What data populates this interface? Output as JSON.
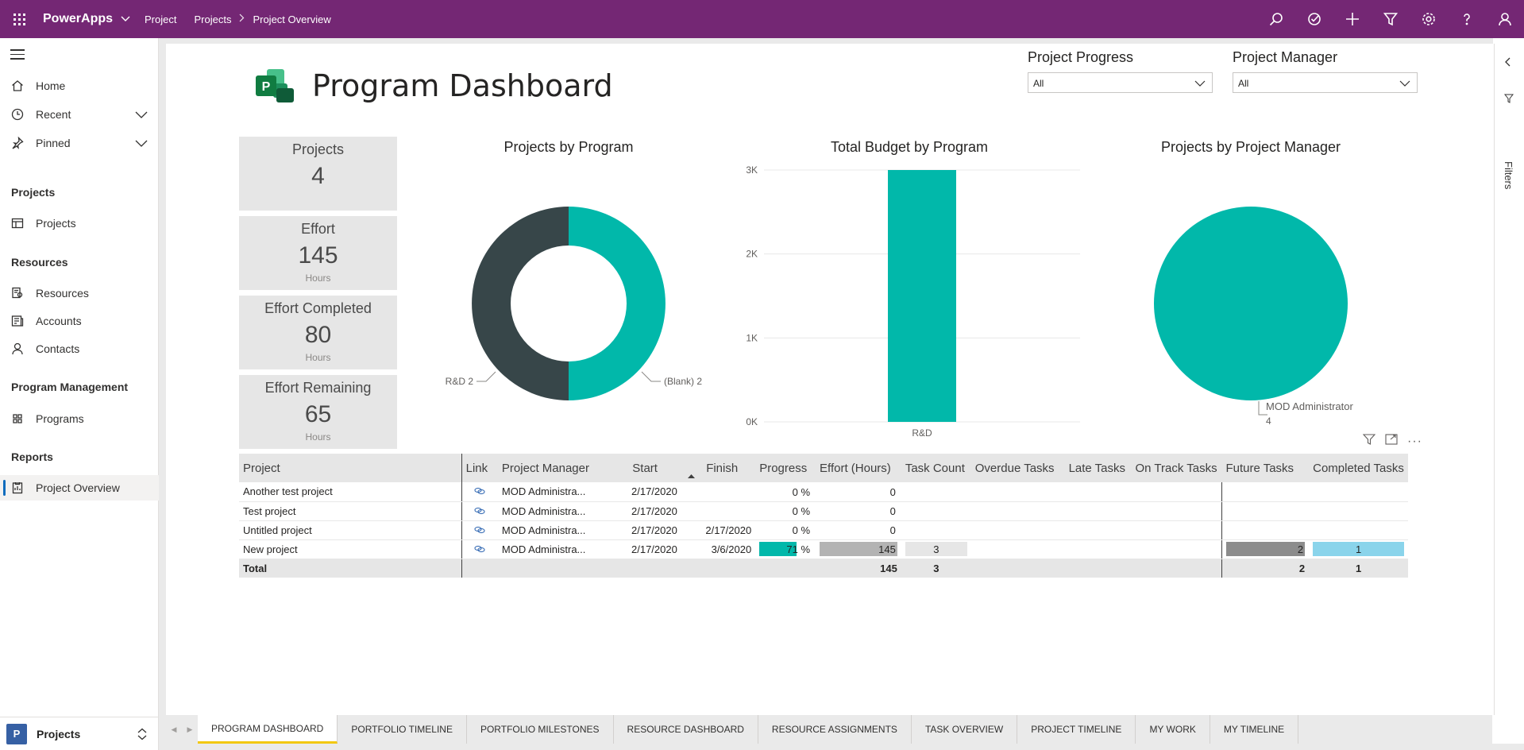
{
  "topbar": {
    "app_name": "PowerApps",
    "breadcrumbs": [
      "Project",
      "Projects",
      "Project Overview"
    ],
    "icons": [
      "search-icon",
      "assistant-icon",
      "plus-icon",
      "filter-icon",
      "settings-icon",
      "help-icon",
      "user-icon"
    ]
  },
  "sidebar": {
    "top_items": [
      {
        "label": "Home",
        "icon": "home-icon"
      },
      {
        "label": "Recent",
        "icon": "clock-icon"
      },
      {
        "label": "Pinned",
        "icon": "pin-icon"
      }
    ],
    "groups": [
      {
        "title": "Projects",
        "items": [
          {
            "label": "Projects",
            "icon": "projects-icon"
          }
        ]
      },
      {
        "title": "Resources",
        "items": [
          {
            "label": "Resources",
            "icon": "resources-icon"
          },
          {
            "label": "Accounts",
            "icon": "accounts-icon"
          },
          {
            "label": "Contacts",
            "icon": "contacts-icon"
          }
        ]
      },
      {
        "title": "Program Management",
        "items": [
          {
            "label": "Programs",
            "icon": "programs-icon"
          }
        ]
      },
      {
        "title": "Reports",
        "items": [
          {
            "label": "Project Overview",
            "icon": "report-icon"
          }
        ]
      }
    ],
    "area": {
      "badge": "P",
      "label": "Projects"
    }
  },
  "report": {
    "title": "Program Dashboard",
    "slicers": [
      {
        "label": "Project Progress",
        "value": "All"
      },
      {
        "label": "Project Manager",
        "value": "All"
      }
    ],
    "cards": [
      {
        "title": "Projects",
        "value": "4",
        "unit": ""
      },
      {
        "title": "Effort",
        "value": "145",
        "unit": "Hours"
      },
      {
        "title": "Effort Completed",
        "value": "80",
        "unit": "Hours"
      },
      {
        "title": "Effort Remaining",
        "value": "65",
        "unit": "Hours"
      }
    ],
    "filters_label": "Filters"
  },
  "chart_data": [
    {
      "type": "pie",
      "title": "Projects by Program",
      "categories": [
        "(Blank)",
        "R&D"
      ],
      "values": [
        2,
        2
      ],
      "labels": [
        "(Blank) 2",
        "R&D 2"
      ],
      "colors": [
        "#01b8aa",
        "#374649"
      ],
      "donut": true
    },
    {
      "type": "bar",
      "title": "Total Budget by Program",
      "categories": [
        "R&D"
      ],
      "values": [
        3000
      ],
      "ylim": [
        0,
        3000
      ],
      "yticks": [
        "0K",
        "1K",
        "2K",
        "3K"
      ],
      "grid": true,
      "color": "#01b8aa"
    },
    {
      "type": "pie",
      "title": "Projects by Project Manager",
      "categories": [
        "MOD Administrator"
      ],
      "values": [
        4
      ],
      "labels": [
        "MOD Administrator",
        "4"
      ],
      "colors": [
        "#01b8aa"
      ]
    }
  ],
  "table": {
    "columns": [
      "Project",
      "Link",
      "Project Manager",
      "Start",
      "Finish",
      "Progress",
      "Effort (Hours)",
      "Task Count",
      "Overdue Tasks",
      "Late Tasks",
      "On Track Tasks",
      "Future Tasks",
      "Completed Tasks"
    ],
    "rows": [
      {
        "project": "Another test project",
        "manager": "MOD Administra...",
        "start": "2/17/2020",
        "finish": "",
        "progress": "0 %",
        "progress_value": 0,
        "effort": "0",
        "effort_value": 0,
        "task_count": "",
        "overdue": "",
        "late": "",
        "on_track": "",
        "future": "",
        "completed": ""
      },
      {
        "project": "Test project",
        "manager": "MOD Administra...",
        "start": "2/17/2020",
        "finish": "",
        "progress": "0 %",
        "progress_value": 0,
        "effort": "0",
        "effort_value": 0,
        "task_count": "",
        "overdue": "",
        "late": "",
        "on_track": "",
        "future": "",
        "completed": ""
      },
      {
        "project": "Untitled project",
        "manager": "MOD Administra...",
        "start": "2/17/2020",
        "finish": "2/17/2020",
        "progress": "0 %",
        "progress_value": 0,
        "effort": "0",
        "effort_value": 0,
        "task_count": "",
        "overdue": "",
        "late": "",
        "on_track": "",
        "future": "",
        "completed": ""
      },
      {
        "project": "New project",
        "manager": "MOD Administra...",
        "start": "2/17/2020",
        "finish": "3/6/2020",
        "progress": "71 %",
        "progress_value": 0.71,
        "effort": "145",
        "effort_value": 1,
        "task_count": "3",
        "overdue": "",
        "late": "",
        "on_track": "",
        "future": "2",
        "completed": "1"
      }
    ],
    "total": {
      "label": "Total",
      "effort": "145",
      "task_count": "3",
      "future": "2",
      "completed": "1"
    }
  },
  "tabs": [
    "PROGRAM DASHBOARD",
    "PORTFOLIO TIMELINE",
    "PORTFOLIO MILESTONES",
    "RESOURCE DASHBOARD",
    "RESOURCE ASSIGNMENTS",
    "TASK OVERVIEW",
    "PROJECT TIMELINE",
    "MY WORK",
    "MY TIMELINE"
  ],
  "active_tab": "PROGRAM DASHBOARD"
}
